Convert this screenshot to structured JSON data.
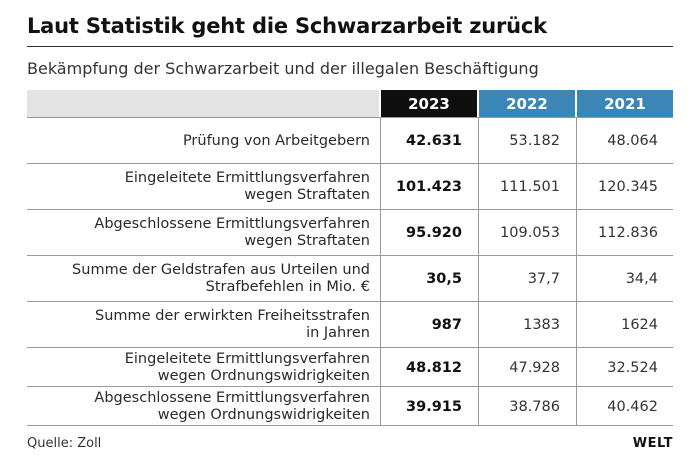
{
  "title": "Laut Statistik geht die Schwarzarbeit zurück",
  "subtitle": "Bekämpfung der Schwarzarbeit und der illegalen Beschäftigung",
  "source": "Quelle: Zoll",
  "logo": "WELT",
  "colors": {
    "current_year_header": "#0f0f0f",
    "prior_year_header": "#3a86b7",
    "header_band": "#e3e3e3"
  },
  "chart_data": {
    "type": "table",
    "title": "Laut Statistik geht die Schwarzarbeit zurück",
    "subtitle": "Bekämpfung der Schwarzarbeit und der illegalen Beschäftigung",
    "columns": [
      "2023",
      "2022",
      "2021"
    ],
    "rows": [
      {
        "label_lines": [
          "Prüfung von Arbeitgebern"
        ],
        "values": [
          "42.631",
          "53.182",
          "48.064"
        ]
      },
      {
        "label_lines": [
          "Eingeleitete Ermittlungsverfahren",
          "wegen Straftaten"
        ],
        "values": [
          "101.423",
          "111.501",
          "120.345"
        ]
      },
      {
        "label_lines": [
          "Abgeschlossene Ermittlungsverfahren",
          "wegen Straftaten"
        ],
        "values": [
          "95.920",
          "109.053",
          "112.836"
        ]
      },
      {
        "label_lines": [
          "Summe der Geldstrafen aus Urteilen und",
          "Strafbefehlen in Mio. €"
        ],
        "values": [
          "30,5",
          "37,7",
          "34,4"
        ]
      },
      {
        "label_lines": [
          "Summe der erwirkten Freiheitsstrafen",
          "in Jahren"
        ],
        "values": [
          "987",
          "1383",
          "1624"
        ]
      },
      {
        "label_lines": [
          "Eingeleitete Ermittlungsverfahren",
          "wegen Ordnungswidrigkeiten"
        ],
        "values": [
          "48.812",
          "47.928",
          "32.524"
        ]
      },
      {
        "label_lines": [
          "Abgeschlossene Ermittlungsverfahren",
          "wegen Ordnungswidrigkeiten"
        ],
        "values": [
          "39.915",
          "38.786",
          "40.462"
        ]
      }
    ],
    "source": "Quelle: Zoll"
  }
}
